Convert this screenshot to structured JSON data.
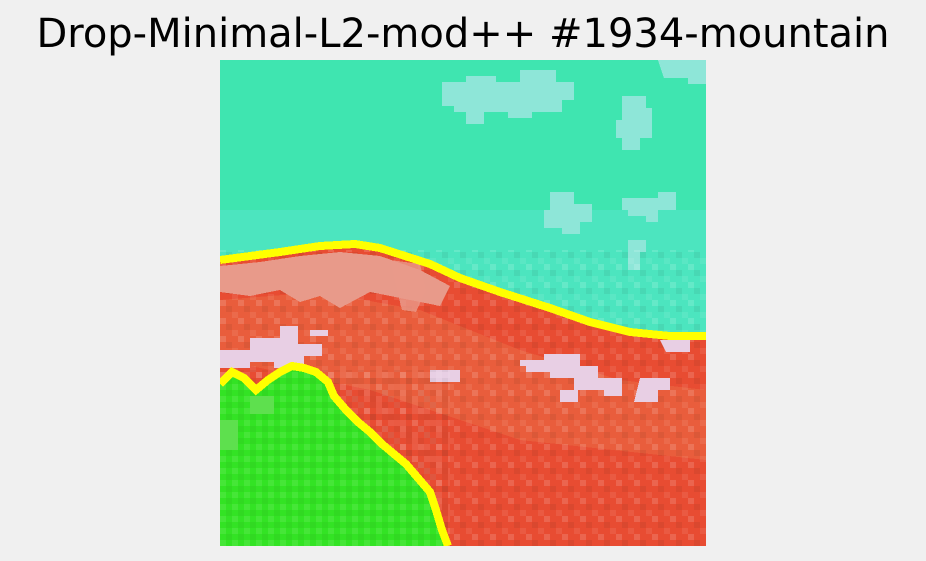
{
  "figure": {
    "title": "Drop-Minimal-L2-mod++ #1934-mountain"
  },
  "image": {
    "regions": [
      {
        "name": "sky",
        "color": "#3fe5b0"
      },
      {
        "name": "sky-light",
        "color": "#52e5c6"
      },
      {
        "name": "cloud",
        "color": "#8ee6d8"
      },
      {
        "name": "mountain-ridge-light",
        "color": "#e89a8a"
      },
      {
        "name": "mountain",
        "color": "#e84c32"
      },
      {
        "name": "mountain-mid",
        "color": "#e8623f"
      },
      {
        "name": "snow-patch",
        "color": "#e8cfe4"
      },
      {
        "name": "boundary",
        "color": "#ffff00"
      },
      {
        "name": "tree",
        "color": "#33e324"
      },
      {
        "name": "tree-light",
        "color": "#5ee04e"
      }
    ]
  }
}
